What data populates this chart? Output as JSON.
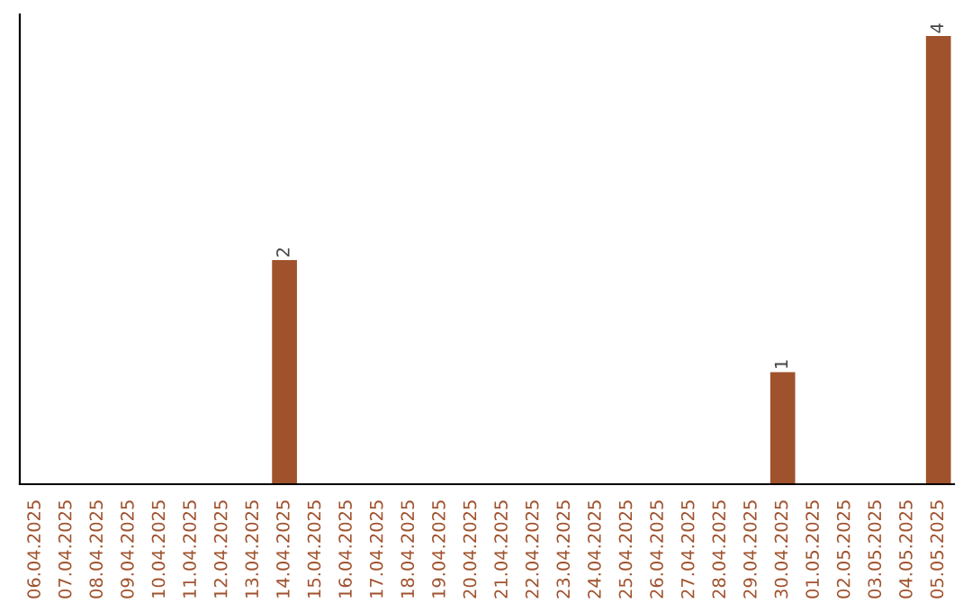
{
  "chart_data": {
    "type": "bar",
    "categories": [
      "06.04.2025",
      "07.04.2025",
      "08.04.2025",
      "09.04.2025",
      "10.04.2025",
      "11.04.2025",
      "12.04.2025",
      "13.04.2025",
      "14.04.2025",
      "15.04.2025",
      "16.04.2025",
      "17.04.2025",
      "18.04.2025",
      "19.04.2025",
      "20.04.2025",
      "21.04.2025",
      "22.04.2025",
      "23.04.2025",
      "24.04.2025",
      "25.04.2025",
      "26.04.2025",
      "27.04.2025",
      "28.04.2025",
      "29.04.2025",
      "30.04.2025",
      "01.05.2025",
      "02.05.2025",
      "03.05.2025",
      "04.05.2025",
      "05.05.2025"
    ],
    "values": [
      0,
      0,
      0,
      0,
      0,
      0,
      0,
      0,
      2,
      0,
      0,
      0,
      0,
      0,
      0,
      0,
      0,
      0,
      0,
      0,
      0,
      0,
      0,
      0,
      1,
      0,
      0,
      0,
      0,
      4
    ],
    "value_labels": [
      null,
      null,
      null,
      null,
      null,
      null,
      null,
      null,
      "2",
      null,
      null,
      null,
      null,
      null,
      null,
      null,
      null,
      null,
      null,
      null,
      null,
      null,
      null,
      null,
      "1",
      null,
      null,
      null,
      null,
      "4"
    ],
    "color": "#a0522d",
    "grid": false,
    "legend": false
  }
}
